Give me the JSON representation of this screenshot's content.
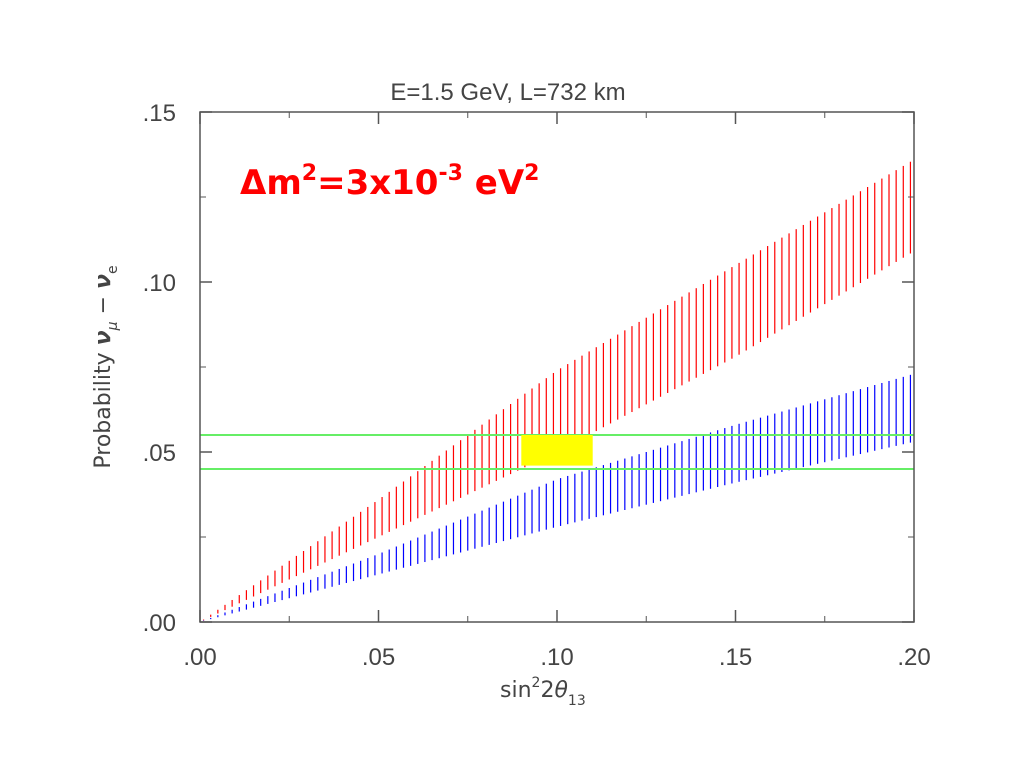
{
  "chart_data": {
    "type": "area",
    "title": "E=1.5 GeV, L=732 km",
    "annotation": {
      "delta": "Δ",
      "m": "m",
      "sup1": "2",
      "mid": "=3x10",
      "sup2": "-3",
      "unit": " eV",
      "sup3": "2"
    },
    "xlabel": {
      "main": "sin",
      "sup": "2",
      "mid": "2",
      "theta": "θ",
      "sub": "13"
    },
    "ylabel": {
      "main": "Probability ",
      "nu1": "ν",
      "sub1": "μ",
      "dash": " − ",
      "nu2": "ν",
      "sub2": "e"
    },
    "xlim": [
      0.0,
      0.2
    ],
    "ylim": [
      0.0,
      0.15
    ],
    "x_tick_labels": [
      ".00",
      ".05",
      ".10",
      ".15",
      ".20"
    ],
    "x_ticks": [
      0.0,
      0.05,
      0.1,
      0.15,
      0.2
    ],
    "y_tick_labels": [
      ".00",
      ".05",
      ".10",
      ".15"
    ],
    "y_ticks": [
      0.0,
      0.05,
      0.1,
      0.15
    ],
    "series": [
      {
        "color": "#ff0000",
        "x": [
          0.0,
          0.05,
          0.1,
          0.15,
          0.2
        ],
        "lower": [
          0.0,
          0.025,
          0.05,
          0.078,
          0.109
        ],
        "upper": [
          0.0,
          0.036,
          0.074,
          0.105,
          0.136
        ]
      },
      {
        "color": "#0000ff",
        "x": [
          0.0,
          0.05,
          0.1,
          0.15,
          0.2
        ],
        "lower": [
          0.0,
          0.014,
          0.028,
          0.041,
          0.053
        ],
        "upper": [
          0.0,
          0.02,
          0.042,
          0.058,
          0.073
        ]
      }
    ],
    "hlines": [
      0.045,
      0.055
    ],
    "hline_color": "#66ee66",
    "highlight": {
      "x": [
        0.09,
        0.11
      ],
      "y": [
        0.046,
        0.055
      ],
      "color": "#ffff00"
    },
    "grid": false
  }
}
